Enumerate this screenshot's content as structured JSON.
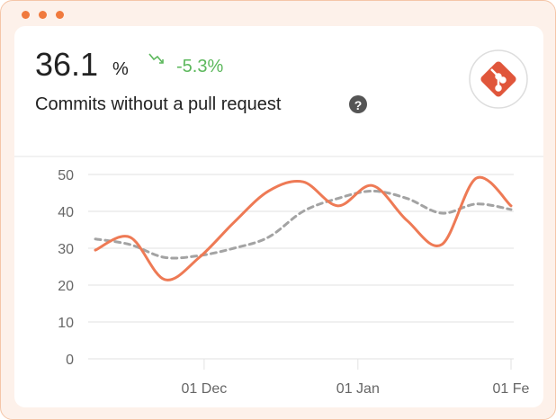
{
  "header": {
    "value": "36.1",
    "unit": "%",
    "change": "-5.3%",
    "subtitle": "Commits without a pull request"
  },
  "chart_data": {
    "type": "line",
    "x": [
      0,
      1,
      2,
      3,
      4,
      5,
      6,
      7,
      8,
      9,
      10,
      11,
      12
    ],
    "xlim": [
      0,
      12
    ],
    "xticks": [
      {
        "value": 3.14,
        "label": "01 Dec"
      },
      {
        "value": 7.58,
        "label": "01 Jan"
      },
      {
        "value": 12,
        "label": "01 Fe"
      }
    ],
    "ylim": [
      0,
      50
    ],
    "yticks": [
      0,
      10,
      20,
      30,
      40,
      50
    ],
    "grid": true,
    "series": [
      {
        "color": "#ee7a55",
        "dashed": false,
        "values": [
          29.5,
          33,
          21.5,
          27.5,
          37,
          45.5,
          48,
          41.5,
          47,
          37.5,
          31,
          49,
          41.5
        ]
      },
      {
        "color": "#a3a3a3",
        "dashed": true,
        "values": [
          32.5,
          31,
          27.5,
          28,
          30,
          33,
          40,
          43.5,
          45.5,
          43.5,
          39.5,
          42,
          40.5
        ]
      }
    ]
  }
}
